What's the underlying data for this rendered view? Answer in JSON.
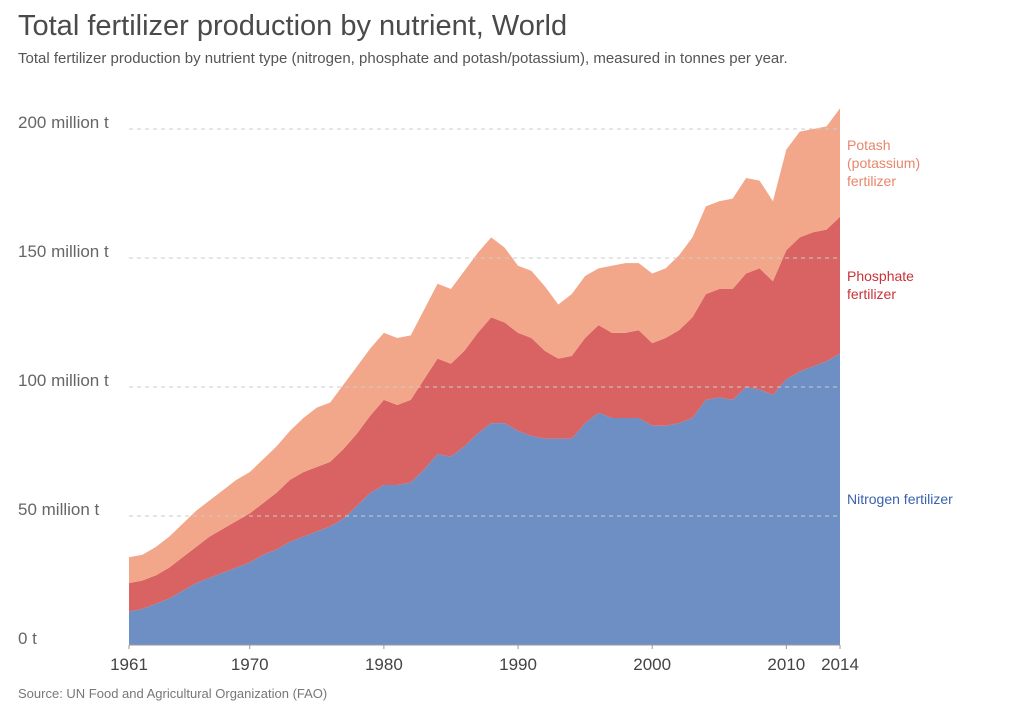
{
  "chart_data": {
    "type": "stacked-area",
    "title": "Total fertilizer production by nutrient, World",
    "subtitle": "Total fertilizer production by nutrient type (nitrogen, phosphate and potash/potassium), measured in tonnes per year.",
    "source": "Source: UN Food and Agricultural Organization (FAO)",
    "x": [
      1961,
      1962,
      1963,
      1964,
      1965,
      1966,
      1967,
      1968,
      1969,
      1970,
      1971,
      1972,
      1973,
      1974,
      1975,
      1976,
      1977,
      1978,
      1979,
      1980,
      1981,
      1982,
      1983,
      1984,
      1985,
      1986,
      1987,
      1988,
      1989,
      1990,
      1991,
      1992,
      1993,
      1994,
      1995,
      1996,
      1997,
      1998,
      1999,
      2000,
      2001,
      2002,
      2003,
      2004,
      2005,
      2006,
      2007,
      2008,
      2009,
      2010,
      2011,
      2012,
      2013,
      2014
    ],
    "xlim": [
      1961,
      2014
    ],
    "xticks": [
      1961,
      1970,
      1980,
      1990,
      2000,
      2010,
      2014
    ],
    "ylim": [
      0,
      210
    ],
    "yticks": [
      {
        "value": 0,
        "label": "0 t"
      },
      {
        "value": 50,
        "label": "50 million t"
      },
      {
        "value": 100,
        "label": "100 million t"
      },
      {
        "value": 150,
        "label": "150 million t"
      },
      {
        "value": 200,
        "label": "200 million t"
      }
    ],
    "grid": true,
    "series": [
      {
        "name": "Nitrogen fertilizer",
        "color": "#6d8fc4",
        "values": [
          13,
          14,
          16,
          18,
          21,
          24,
          26,
          28,
          30,
          32,
          35,
          37,
          40,
          42,
          44,
          46,
          49,
          54,
          59,
          62,
          62,
          63,
          68,
          74,
          73,
          77,
          82,
          86,
          86,
          83,
          81,
          80,
          80,
          80,
          86,
          90,
          88,
          88,
          88,
          85,
          85,
          86,
          88,
          95,
          96,
          95,
          100,
          99,
          97,
          103,
          106,
          108,
          110,
          113
        ]
      },
      {
        "name": "Phosphate fertilizer",
        "color": "#d96262",
        "values": [
          11,
          11,
          11,
          12,
          13,
          14,
          16,
          17,
          18,
          19,
          20,
          22,
          24,
          25,
          25,
          25,
          27,
          28,
          30,
          33,
          31,
          32,
          35,
          37,
          36,
          37,
          39,
          41,
          39,
          38,
          38,
          34,
          31,
          32,
          33,
          34,
          33,
          33,
          34,
          32,
          34,
          36,
          39,
          41,
          42,
          43,
          44,
          47,
          44,
          50,
          52,
          52,
          51,
          53
        ]
      },
      {
        "name": "Potash (potassium) fertilizer",
        "color": "#f2a68a",
        "values": [
          10,
          10,
          11,
          12,
          13,
          14,
          14,
          15,
          16,
          16,
          17,
          18,
          19,
          21,
          23,
          23,
          25,
          26,
          26,
          26,
          26,
          25,
          27,
          29,
          29,
          31,
          31,
          31,
          29,
          26,
          26,
          25,
          21,
          24,
          24,
          22,
          26,
          27,
          26,
          27,
          27,
          29,
          31,
          34,
          34,
          35,
          37,
          34,
          31,
          39,
          41,
          40,
          40,
          42
        ]
      }
    ]
  }
}
